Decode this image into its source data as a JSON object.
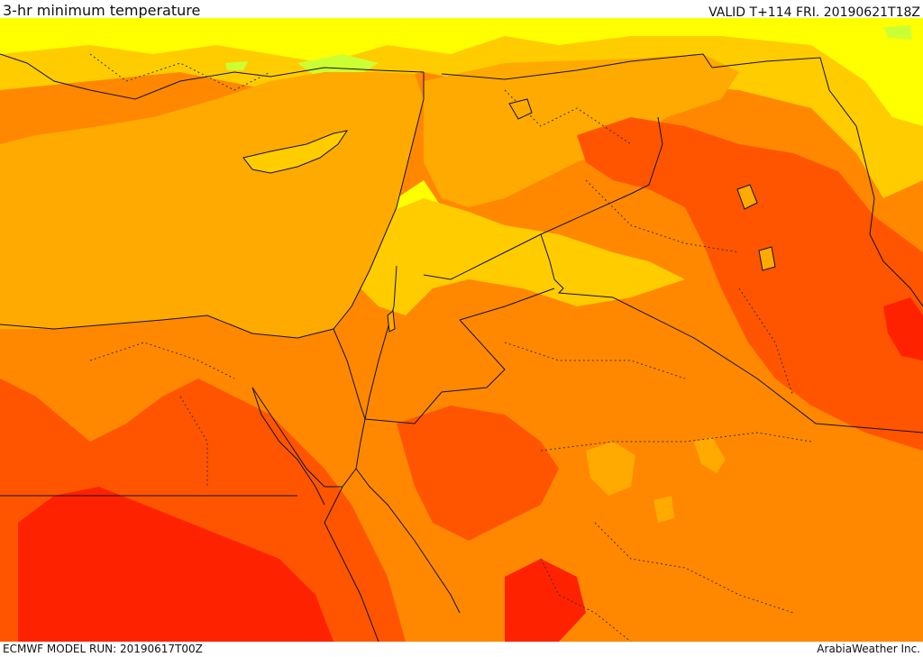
{
  "header": {
    "title": "3-hr minimum temperature",
    "valid": "VALID T+114 FRI. 20190621T18Z"
  },
  "footer": {
    "model_run": "ECMWF MODEL RUN: 20190617T00Z",
    "credit": "ArabiaWeather Inc."
  },
  "colors": {
    "lime": "#ccff33",
    "yellow": "#ffff00",
    "light_orange": "#ffcc00",
    "orange": "#ffaa00",
    "dark_orange": "#ff8800",
    "red_orange": "#ff5500",
    "red": "#ff2200",
    "boundary": "#111111"
  }
}
